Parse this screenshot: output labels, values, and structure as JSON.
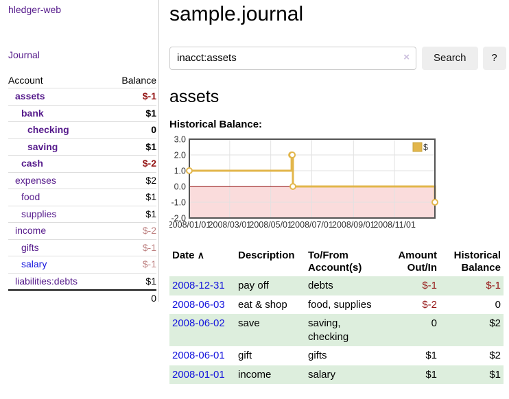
{
  "sidebar": {
    "brand": "hledger-web",
    "nav": {
      "journal": "Journal"
    },
    "accounts_table": {
      "headers": {
        "account": "Account",
        "balance": "Balance"
      },
      "rows": [
        {
          "name": "assets",
          "balance": "$-1"
        },
        {
          "name": "bank",
          "balance": "$1"
        },
        {
          "name": "checking",
          "balance": "0"
        },
        {
          "name": "saving",
          "balance": "$1"
        },
        {
          "name": "cash",
          "balance": "$-2"
        },
        {
          "name": "expenses",
          "balance": "$2"
        },
        {
          "name": "food",
          "balance": "$1"
        },
        {
          "name": "supplies",
          "balance": "$1"
        },
        {
          "name": "income",
          "balance": "$-2"
        },
        {
          "name": "gifts",
          "balance": "$-1"
        },
        {
          "name": "salary",
          "balance": "$-1"
        },
        {
          "name": "liabilities:debts",
          "balance": "$1"
        }
      ],
      "total": "0"
    }
  },
  "header": {
    "title": "sample.journal"
  },
  "search": {
    "query": "inacct:assets",
    "clear_icon": "×",
    "button": "Search",
    "help_button": "?"
  },
  "account_page": {
    "heading": "assets",
    "chart_label": "Historical Balance:"
  },
  "chart_data": {
    "type": "line",
    "title": "Historical Balance",
    "series": [
      {
        "name": "$",
        "color": "#e2b64b",
        "step": true,
        "points": [
          [
            "2008-01-01",
            1
          ],
          [
            "2008-06-01",
            2
          ],
          [
            "2008-06-02",
            2
          ],
          [
            "2008-06-03",
            0
          ],
          [
            "2008-12-31",
            -1
          ]
        ]
      }
    ],
    "x_range": [
      "2008-01-01",
      "2008-12-31"
    ],
    "x_tick_dates": [
      "2008-01-01",
      "2008-03-01",
      "2008-05-01",
      "2008-07-01",
      "2008-09-01",
      "2008-11-01"
    ],
    "x_ticks": [
      "2008/01/01",
      "2008/03/01",
      "2008/05/01",
      "2008/07/01",
      "2008/09/01",
      "2008/11/01"
    ],
    "y_ticks": [
      3.0,
      2.0,
      1.0,
      0.0,
      -1.0,
      -2.0
    ],
    "ylim": [
      -2,
      3
    ],
    "grid": true,
    "legend": {
      "label": "$",
      "position": "top-right"
    },
    "negative_region_color": "#fadcdc",
    "zero_line_color": "#8b0000",
    "grid_color": "#e2e2e2",
    "border_color": "#545454"
  },
  "register": {
    "headers": [
      "Date",
      "Description",
      "To/From Account(s)",
      "Amount Out/In",
      "Historical Balance"
    ],
    "sort_icon": "∧",
    "rows": [
      {
        "date": "2008-12-31",
        "description": "pay off",
        "accounts": "debts",
        "amount": "$-1",
        "balance": "$-1"
      },
      {
        "date": "2008-06-03",
        "description": "eat & shop",
        "accounts": "food, supplies",
        "amount": "$-2",
        "balance": "0"
      },
      {
        "date": "2008-06-02",
        "description": "save",
        "accounts": "saving, checking",
        "amount": "0",
        "balance": "$2"
      },
      {
        "date": "2008-06-01",
        "description": "gift",
        "accounts": "gifts",
        "amount": "$1",
        "balance": "$2"
      },
      {
        "date": "2008-01-01",
        "description": "income",
        "accounts": "salary",
        "amount": "$1",
        "balance": "$1"
      }
    ]
  },
  "colors": {
    "link_purple": "#551a8b",
    "link_blue": "#1414dd",
    "negative_red": "#941414",
    "muted_negative": "#bd8080",
    "row_green": "#ddeedd",
    "chart_gold": "#e2b64b"
  }
}
